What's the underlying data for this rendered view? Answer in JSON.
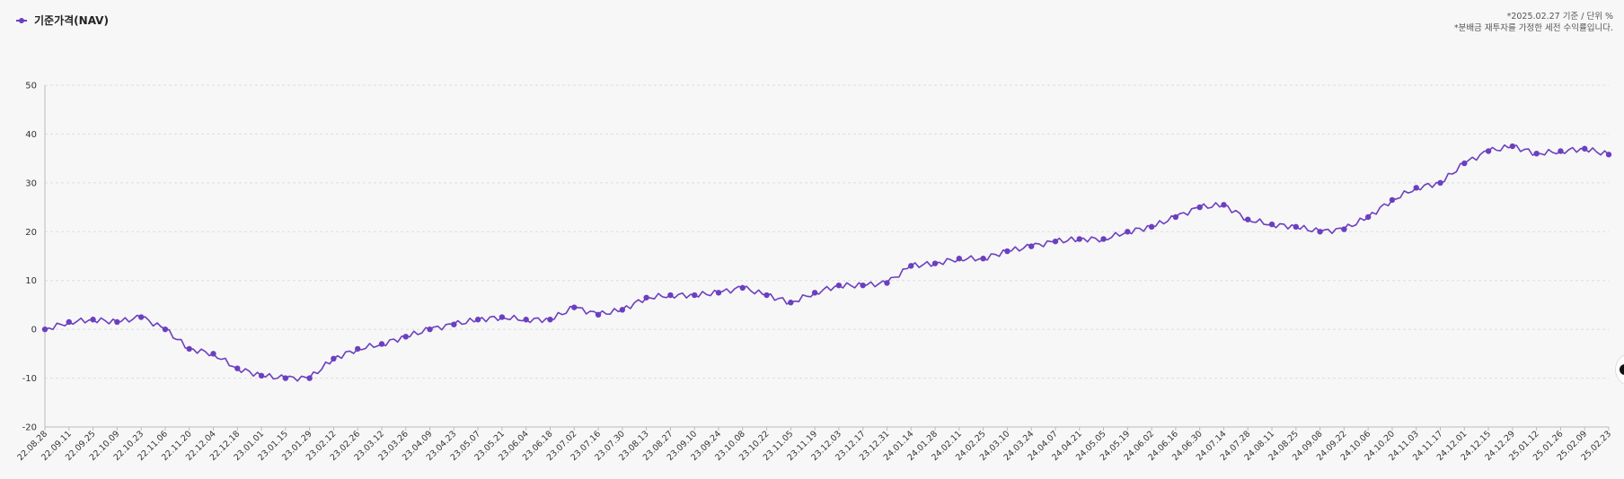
{
  "legend": {
    "label": "기준가격(NAV)"
  },
  "notes": {
    "line1": "*2025.02.27 기준 / 단위 %",
    "line2": "*분배금 재투자를 가정한 세전 수익률입니다."
  },
  "colors": {
    "series": "#6c3fc0",
    "grid": "#dddddd",
    "axis": "#bbbbbb"
  },
  "chart_data": {
    "type": "line",
    "title": "",
    "xlabel": "",
    "ylabel": "",
    "ylim": [
      -20,
      50
    ],
    "yticks": [
      50,
      40,
      30,
      20,
      10,
      0,
      -10,
      -20
    ],
    "grid": "horizontal dashed",
    "legend_position": "top-left",
    "categories": [
      "22.08.28",
      "22.09.11",
      "22.09.25",
      "22.10.09",
      "22.10.23",
      "22.11.06",
      "22.11.20",
      "22.12.04",
      "22.12.18",
      "23.01.01",
      "23.01.15",
      "23.01.29",
      "23.02.12",
      "23.02.26",
      "23.03.12",
      "23.03.26",
      "23.04.09",
      "23.04.23",
      "23.05.07",
      "23.05.21",
      "23.06.04",
      "23.06.18",
      "23.07.02",
      "23.07.16",
      "23.07.30",
      "23.08.13",
      "23.08.27",
      "23.09.10",
      "23.09.24",
      "23.10.08",
      "23.10.22",
      "23.11.05",
      "23.11.19",
      "23.12.03",
      "23.12.17",
      "23.12.31",
      "24.01.14",
      "24.01.28",
      "24.02.11",
      "24.02.25",
      "24.03.10",
      "24.03.24",
      "24.04.07",
      "24.04.21",
      "24.05.05",
      "24.05.19",
      "24.06.02",
      "24.06.16",
      "24.06.30",
      "24.07.14",
      "24.07.28",
      "24.08.11",
      "24.08.25",
      "24.09.08",
      "24.09.22",
      "24.10.06",
      "24.10.20",
      "24.11.03",
      "24.11.17",
      "24.12.01",
      "24.12.15",
      "24.12.29",
      "25.01.12",
      "25.01.26",
      "25.02.09",
      "25.02.23"
    ],
    "series": [
      {
        "name": "기준가격(NAV)",
        "values": [
          0,
          1.5,
          2,
          1.5,
          2.5,
          0,
          -4,
          -5,
          -8,
          -9.5,
          -10,
          -10,
          -6,
          -4,
          -3,
          -1.5,
          0,
          1,
          2,
          2.5,
          2,
          2,
          4.5,
          3,
          4,
          6.5,
          7,
          7,
          7.5,
          8.5,
          7,
          5.5,
          7.5,
          9,
          9,
          9.5,
          13,
          13.5,
          14.5,
          14.5,
          16,
          17,
          18,
          18.5,
          18.5,
          20,
          21,
          23,
          25,
          25.5,
          22.5,
          21.5,
          21,
          20,
          20.5,
          23,
          26.5,
          29,
          30,
          34,
          36.5,
          37.5,
          36,
          36.5,
          37,
          35.8
        ]
      }
    ]
  }
}
